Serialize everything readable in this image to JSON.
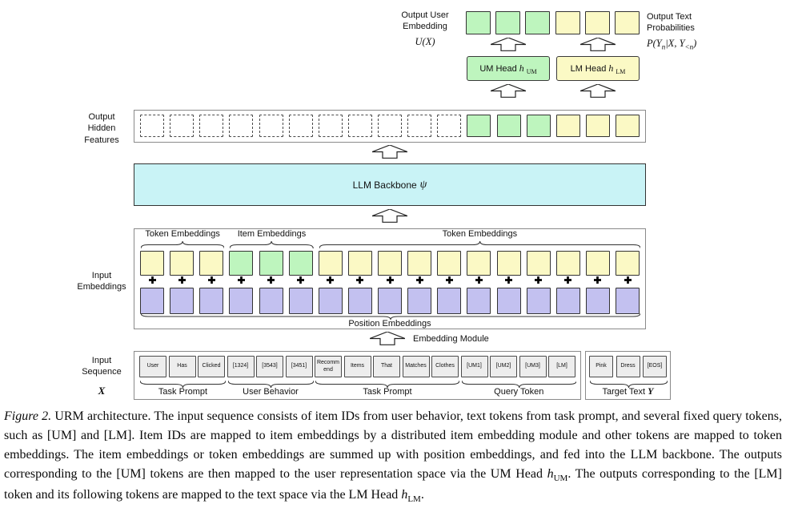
{
  "colors": {
    "green": "#bef5be",
    "yellow": "#fbf9c5",
    "cyan": "#c9f3f6",
    "purple": "#c3c1f0",
    "token": "#ededed"
  },
  "outputs": {
    "user_label1": "Output User",
    "user_label2": "Embedding",
    "user_math": "U(X)",
    "user_cells": [
      "green",
      "green",
      "green"
    ],
    "text_label1": "Output Text",
    "text_label2": "Probabilities",
    "text_cells": [
      "yellow",
      "yellow",
      "yellow"
    ],
    "prob_math": {
      "p1": "P(Y",
      "s1": "n",
      "p2": "|X, Y",
      "s2": "<n",
      "p3": ")"
    }
  },
  "heads": {
    "um": {
      "label": "UM Head",
      "h": "h",
      "sub": "UM"
    },
    "lm": {
      "label": "LM Head",
      "h": "h",
      "sub": "LM"
    }
  },
  "hidden": {
    "label1": "Output",
    "label2": "Hidden",
    "label3": "Features",
    "cells": [
      "dashed",
      "dashed",
      "dashed",
      "dashed",
      "dashed",
      "dashed",
      "dashed",
      "dashed",
      "dashed",
      "dashed",
      "dashed",
      "green",
      "green",
      "green",
      "yellow",
      "yellow",
      "yellow"
    ]
  },
  "backbone": {
    "label": "LLM Backbone",
    "math": "ψ"
  },
  "embeddings": {
    "label1": "Input",
    "label2": "Embeddings",
    "top_cells": [
      "yellow",
      "yellow",
      "yellow",
      "green",
      "green",
      "green",
      "yellow",
      "yellow",
      "yellow",
      "yellow",
      "yellow",
      "yellow",
      "yellow",
      "yellow",
      "yellow",
      "yellow",
      "yellow"
    ],
    "bottom_cells": [
      "purple",
      "purple",
      "purple",
      "purple",
      "purple",
      "purple",
      "purple",
      "purple",
      "purple",
      "purple",
      "purple",
      "purple",
      "purple",
      "purple",
      "purple",
      "purple",
      "purple"
    ],
    "plus_count": 17,
    "groups": [
      {
        "label": "Token Embeddings",
        "start": 0,
        "end": 2
      },
      {
        "label": "Item Embeddings",
        "start": 3,
        "end": 5
      },
      {
        "label": "Token Embeddings",
        "start": 6,
        "end": 16
      }
    ],
    "bottom_brace": {
      "label": "Position Embeddings",
      "start": 0,
      "end": 16
    }
  },
  "module": {
    "label": "Embedding Module"
  },
  "sequence": {
    "label1": "Input",
    "label2": "Sequence",
    "math": "X",
    "tokens": [
      "User",
      "Has",
      "Clicked",
      "[1324]",
      "[3543]",
      "[3451]",
      "Recomm end",
      "Items",
      "That",
      "Matches",
      "Clothes",
      "[UM1]",
      "[UM2]",
      "[UM3]",
      "[LM]"
    ],
    "groups": [
      {
        "label": "Task Prompt",
        "start": 0,
        "end": 2
      },
      {
        "label": "User Behavior",
        "start": 3,
        "end": 5
      },
      {
        "label": "Task Prompt",
        "start": 6,
        "end": 10
      },
      {
        "label": "Query Token",
        "start": 11,
        "end": 14
      }
    ],
    "target": {
      "tokens": [
        "Pink",
        "Dress",
        "[EOS]"
      ],
      "label": "Target Text",
      "math": "Y"
    }
  },
  "caption": {
    "figure_label": "Figure 2.",
    "part1": " URM architecture. The input sequence consists of item IDs from user behavior, text tokens from task prompt, and several fixed query tokens, such as [UM] and [LM]. Item IDs are mapped to item embeddings by a distributed item embedding module and other tokens are mapped to token embeddings. The item embeddings or token embeddings are summed up with position embeddings, and fed into the LLM backbone. The outputs corresponding to the [UM] tokens are then mapped to the user representation space via the UM Head ",
    "h1": "h",
    "h1_sub": "UM",
    "dot1": ".",
    "part2": " The outputs corresponding to the [LM] token and its following tokens are mapped to the text space via the LM Head ",
    "h2": "h",
    "h2_sub": "LM",
    "dot2": "."
  }
}
